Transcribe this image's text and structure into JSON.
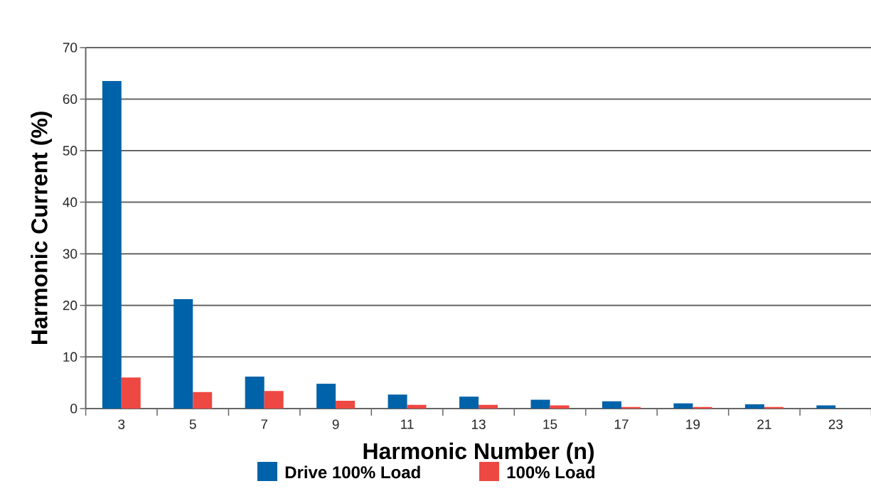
{
  "chart_data": {
    "type": "bar",
    "xlabel": "Harmonic Number (n)",
    "ylabel": "Harmonic Current (%)",
    "categories": [
      "3",
      "5",
      "7",
      "9",
      "11",
      "13",
      "15",
      "17",
      "19",
      "21",
      "23"
    ],
    "series": [
      {
        "name": "Drive 100% Load",
        "color": "#0062a8",
        "values": [
          63.5,
          21.2,
          6.2,
          4.8,
          2.7,
          2.3,
          1.7,
          1.4,
          1.0,
          0.8,
          0.6
        ]
      },
      {
        "name": "100% Load",
        "color": "#ee4842",
        "values": [
          6.0,
          3.2,
          3.4,
          1.5,
          0.7,
          0.7,
          0.6,
          0.3,
          0.3,
          0.3,
          0
        ]
      }
    ],
    "ylim": [
      0,
      70
    ],
    "yticks": [
      0,
      10,
      20,
      30,
      40,
      50,
      60,
      70
    ],
    "grid": "y",
    "legend": "bottom"
  }
}
